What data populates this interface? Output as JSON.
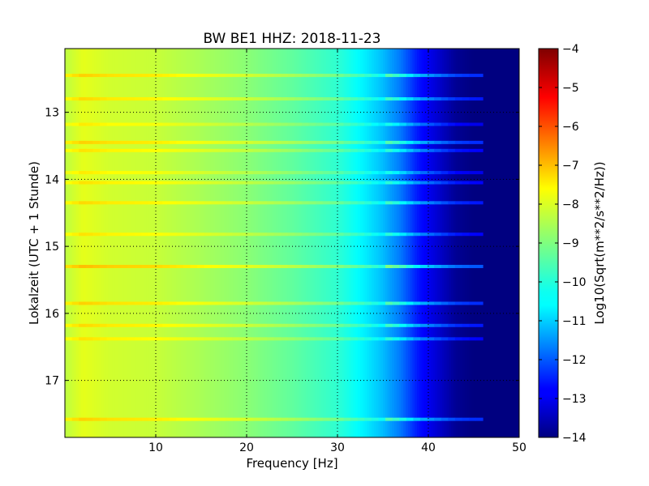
{
  "chart_data": {
    "type": "heatmap",
    "title": "BW BE1 HHZ: 2018-11-23",
    "xlabel": "Frequency [Hz]",
    "ylabel": "Lokalzeit (UTC + 1 Stunde)",
    "xlim": [
      0,
      50
    ],
    "ylim": [
      12.05,
      17.85
    ],
    "y_inverted": true,
    "x_ticks": [
      10,
      20,
      30,
      40,
      50
    ],
    "y_ticks": [
      13,
      14,
      15,
      16,
      17
    ],
    "grid": true,
    "colormap": "jet",
    "colorbar": {
      "label": "Log10(Sqrt(m**2/s**2/Hz))",
      "range": [
        -14,
        -4
      ],
      "ticks": [
        -4,
        -5,
        -6,
        -7,
        -8,
        -9,
        -10,
        -11,
        -12,
        -13,
        -14
      ]
    },
    "frequency_profile": {
      "frequency_hz": [
        0,
        2,
        5,
        10,
        15,
        20,
        25,
        30,
        33,
        35,
        37,
        39,
        41,
        43,
        45,
        50
      ],
      "value": [
        -8.4,
        -8.0,
        -8.2,
        -8.3,
        -8.6,
        -8.9,
        -9.3,
        -9.8,
        -10.4,
        -10.9,
        -11.6,
        -12.6,
        -13.2,
        -13.8,
        -14.0,
        -14.0
      ]
    },
    "bands": [
      {
        "time": 12.45,
        "strength": 0.8
      },
      {
        "time": 12.8,
        "strength": 0.7
      },
      {
        "time": 13.18,
        "strength": 0.5
      },
      {
        "time": 13.45,
        "strength": 0.8
      },
      {
        "time": 13.57,
        "strength": 0.6
      },
      {
        "time": 13.9,
        "strength": 0.5
      },
      {
        "time": 14.05,
        "strength": 0.6
      },
      {
        "time": 14.35,
        "strength": 0.7
      },
      {
        "time": 14.82,
        "strength": 0.6
      },
      {
        "time": 15.3,
        "strength": 1.0
      },
      {
        "time": 15.85,
        "strength": 0.8
      },
      {
        "time": 16.18,
        "strength": 0.7
      },
      {
        "time": 16.38,
        "strength": 0.6
      },
      {
        "time": 17.58,
        "strength": 0.8
      }
    ]
  }
}
